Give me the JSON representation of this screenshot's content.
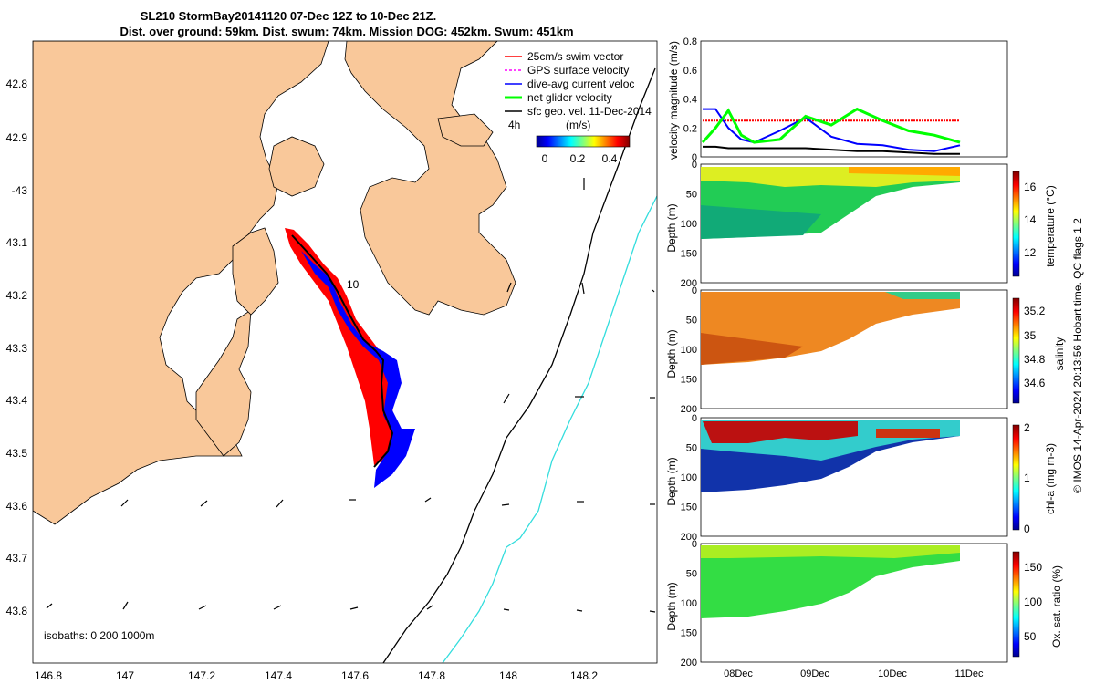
{
  "header": {
    "title_line1": "SL210 StormBay20141120 07-Dec 12Z to 10-Dec 21Z.",
    "title_line2": "Dist. over ground: 59km. Dist. swum: 74km. Mission DOG: 452km. Swum: 451km"
  },
  "map": {
    "legend": [
      {
        "label": "25cm/s swim vector",
        "color": "#ff0000"
      },
      {
        "label": "GPS surface velocity",
        "color": "#ff00ff"
      },
      {
        "label": "dive-avg current veloc",
        "color": "#0000ff"
      },
      {
        "label": "net glider velocity",
        "color": "#00ff00"
      },
      {
        "label": "sfc geo. vel. 11-Dec-2014",
        "color": "#000000"
      }
    ],
    "time_label": "4h",
    "track_label": "10",
    "colorbar": {
      "title": "(m/s)",
      "ticks": [
        "0",
        "0.2",
        "0.4"
      ]
    },
    "isobaths_label": "isobaths: 0   200  1000m",
    "lon_ticks": [
      "146.8",
      "147",
      "147.2",
      "147.4",
      "147.6",
      "147.8",
      "148",
      "148.2"
    ],
    "lat_ticks": [
      "42.8",
      "42.9",
      "-43",
      "43.1",
      "43.2",
      "43.3",
      "43.4",
      "43.5",
      "43.6",
      "43.7",
      "43.8"
    ],
    "colors": {
      "land": "#f9c89a",
      "ocean": "#ffffff",
      "isobath_200": "#000000",
      "isobath_1000": "#33dddd"
    }
  },
  "chart_data": [
    {
      "type": "line",
      "title": "",
      "ylabel": "velocity magnitude (m/s)",
      "ylim": [
        0,
        0.8
      ],
      "yticks": [
        "0",
        "0.2",
        "0.4",
        "0.6",
        "0.8"
      ],
      "x": [
        0,
        0.05,
        0.1,
        0.15,
        0.2,
        0.3,
        0.4,
        0.5,
        0.6,
        0.7,
        0.8,
        0.9,
        1.0
      ],
      "series": [
        {
          "name": "swim 25cm/s",
          "color": "#ff0000",
          "values": [
            0.25,
            0.25,
            0.25,
            0.25,
            0.25,
            0.25,
            0.25,
            0.25,
            0.25,
            0.25,
            0.25,
            0.25,
            0.25
          ]
        },
        {
          "name": "dive-avg current",
          "color": "#0000ff",
          "values": [
            0.33,
            0.33,
            0.2,
            0.12,
            0.1,
            0.18,
            0.27,
            0.14,
            0.09,
            0.08,
            0.05,
            0.04,
            0.08
          ]
        },
        {
          "name": "net glider",
          "color": "#00ff00",
          "values": [
            0.1,
            0.2,
            0.32,
            0.15,
            0.1,
            0.12,
            0.28,
            0.22,
            0.33,
            0.25,
            0.18,
            0.15,
            0.1
          ]
        },
        {
          "name": "sfc geo vel",
          "color": "#000000",
          "values": [
            0.07,
            0.07,
            0.06,
            0.06,
            0.06,
            0.06,
            0.06,
            0.05,
            0.04,
            0.04,
            0.03,
            0.02,
            0.02
          ]
        }
      ]
    },
    {
      "type": "heatmap",
      "ylabel": "Depth (m)",
      "yticks": [
        "0",
        "50",
        "100",
        "150",
        "200"
      ],
      "colorbar_label": "temperature (°C)",
      "colorbar_ticks": [
        "16",
        "14",
        "12"
      ]
    },
    {
      "type": "heatmap",
      "ylabel": "Depth (m)",
      "yticks": [
        "0",
        "50",
        "100",
        "150",
        "200"
      ],
      "colorbar_label": "salinity",
      "colorbar_ticks": [
        "35.2",
        "35",
        "34.8",
        "34.6"
      ]
    },
    {
      "type": "heatmap",
      "ylabel": "Depth (m)",
      "yticks": [
        "0",
        "50",
        "100",
        "150",
        "200"
      ],
      "colorbar_label": "chl-a (mg m-3)",
      "colorbar_ticks": [
        "2",
        "1",
        "0"
      ]
    },
    {
      "type": "heatmap",
      "ylabel": "Depth (m)",
      "yticks": [
        "0",
        "50",
        "100",
        "150",
        "200"
      ],
      "colorbar_label": "Ox. sat. ratio (%)",
      "colorbar_ticks": [
        "150",
        "100",
        "50"
      ]
    }
  ],
  "time_axis": {
    "ticks": [
      "08Dec",
      "09Dec",
      "10Dec",
      "11Dec"
    ]
  },
  "footer": {
    "credit": "© IMOS 14-Apr-2024 20:13:56 Hobart time. QC flags 1  2"
  }
}
